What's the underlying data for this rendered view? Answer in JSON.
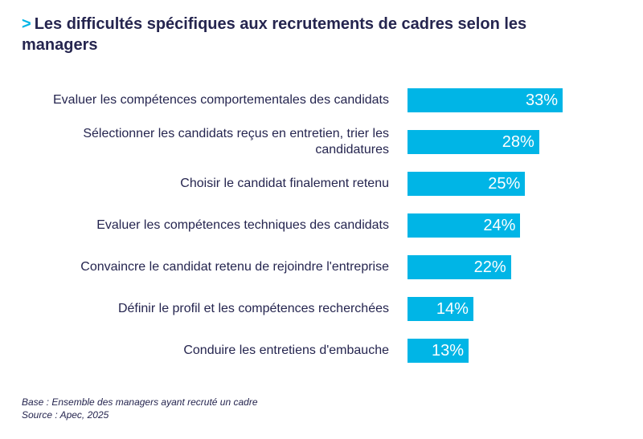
{
  "title": {
    "prefix": ">",
    "text": "Les difficultés spécifiques aux recrutements de cadres selon les managers"
  },
  "chart_data": {
    "type": "bar",
    "orientation": "horizontal",
    "title": "Les difficultés spécifiques aux recrutements de cadres selon les managers",
    "categories": [
      "Evaluer les compétences comportementales des candidats",
      "Sélectionner les candidats reçus en entretien, trier les candidatures",
      "Choisir le candidat finalement retenu",
      "Evaluer les compétences techniques des candidats",
      "Convaincre le candidat retenu de rejoindre l'entreprise",
      "Définir le profil et les compétences recherchées",
      "Conduire les entretiens d'embauche"
    ],
    "values": [
      33,
      28,
      25,
      24,
      22,
      14,
      13
    ],
    "value_labels": [
      "33%",
      "28%",
      "25%",
      "24%",
      "22%",
      "14%",
      "13%"
    ],
    "unit": "%",
    "bar_color": "#00b5e6",
    "grid": false
  },
  "footer": {
    "base": "Base : Ensemble des managers ayant recruté un cadre",
    "source": "Source : Apec, 2025"
  }
}
